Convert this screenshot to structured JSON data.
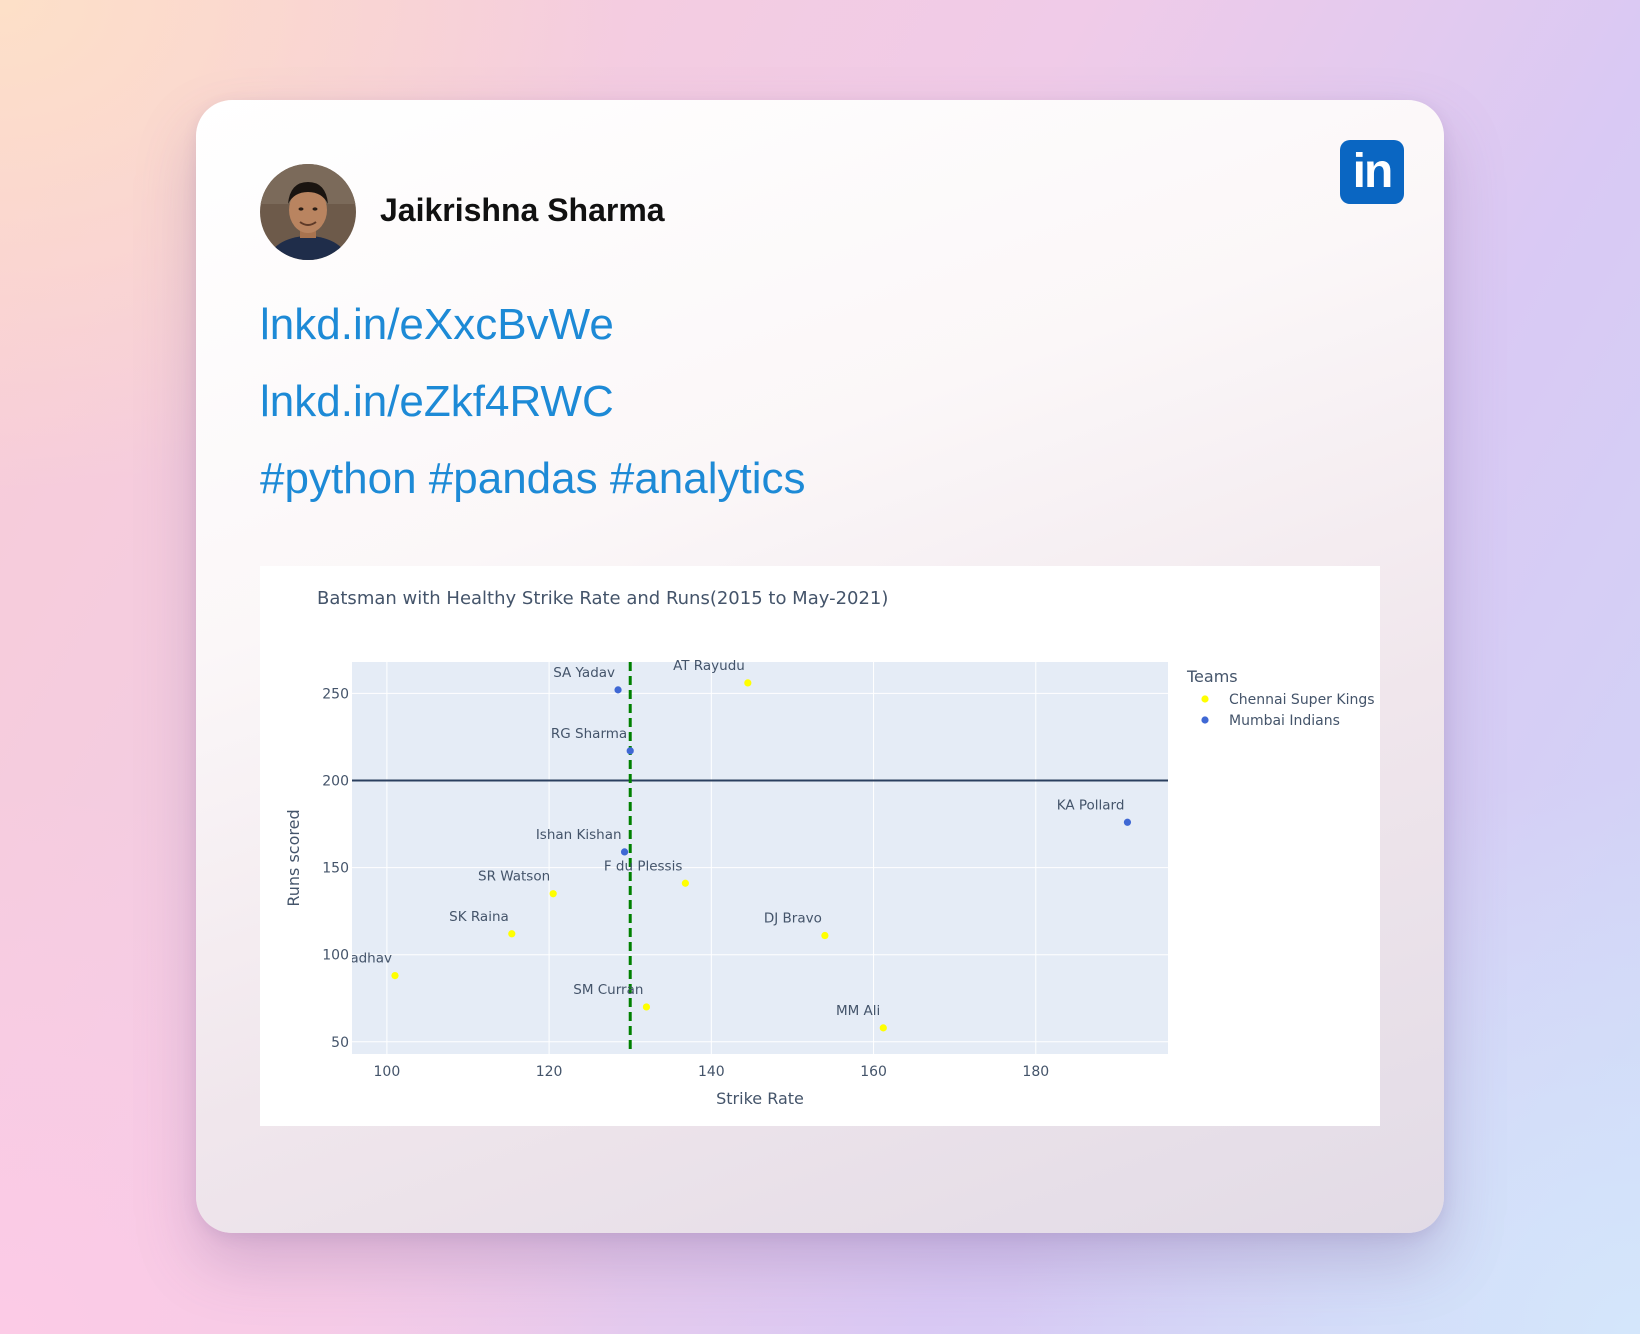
{
  "post": {
    "author_name": "Jaikrishna Sharma",
    "links": [
      "lnkd.in/eXxcBvWe",
      "lnkd.in/eZkf4RWC"
    ],
    "hashtags": "#python #pandas #analytics"
  },
  "icons": {
    "brand": "linkedin-icon",
    "brand_text": "in",
    "avatar": "avatar-photo"
  },
  "colors": {
    "link": "#1d8ad6",
    "linkedin_blue": "#0a66c2",
    "plot_bg": "#e5ecf6",
    "csk": "#ffff00",
    "mi": "#3f68d4",
    "threshold_v": "#008000",
    "threshold_h": "#2a3f5f"
  },
  "chart_data": {
    "type": "scatter",
    "title": "Batsman with Healthy Strike Rate and Runs(2015 to May-2021)",
    "xlabel": "Strike Rate",
    "ylabel": "Runs scored",
    "xlim": [
      95.7,
      196.3
    ],
    "ylim": [
      43,
      268
    ],
    "xticks": [
      100,
      120,
      140,
      160,
      180
    ],
    "yticks": [
      50,
      100,
      150,
      200,
      250
    ],
    "grid": true,
    "legend": {
      "title": "Teams",
      "placement": "right"
    },
    "reference_lines": {
      "vertical_x": 130,
      "horizontal_y": 200
    },
    "series": [
      {
        "name": "Chennai Super Kings",
        "points": [
          {
            "label": "AT Rayudu",
            "x": 144.5,
            "y": 256
          },
          {
            "label": "F du Plessis",
            "x": 136.8,
            "y": 141
          },
          {
            "label": "SR Watson",
            "x": 120.5,
            "y": 135
          },
          {
            "label": "SK Raina",
            "x": 115.4,
            "y": 112
          },
          {
            "label": "DJ Bravo",
            "x": 154,
            "y": 111
          },
          {
            "label": "KM Jadhav",
            "x": 101,
            "y": 88
          },
          {
            "label": "SM Curran",
            "x": 132,
            "y": 70
          },
          {
            "label": "MM Ali",
            "x": 161.2,
            "y": 58
          }
        ]
      },
      {
        "name": "Mumbai Indians",
        "points": [
          {
            "label": "SA Yadav",
            "x": 128.5,
            "y": 252
          },
          {
            "label": "RG Sharma",
            "x": 130,
            "y": 217
          },
          {
            "label": "KA Pollard",
            "x": 191.3,
            "y": 176
          },
          {
            "label": "Ishan Kishan",
            "x": 129.3,
            "y": 159
          }
        ]
      }
    ]
  }
}
